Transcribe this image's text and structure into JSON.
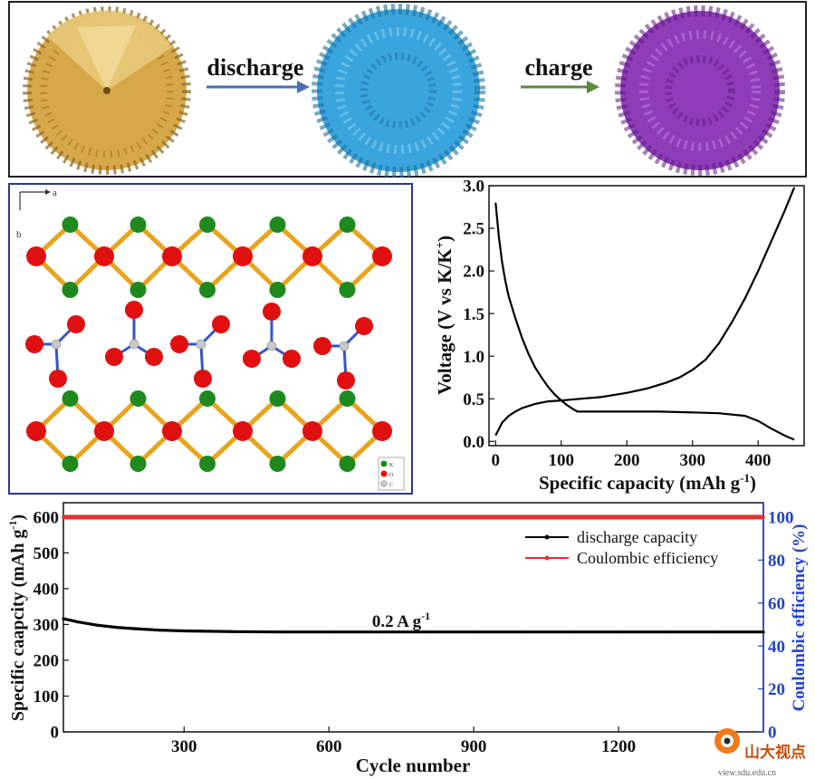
{
  "schematic": {
    "label_discharge": "discharge",
    "label_charge": "charge",
    "sphere_colors": {
      "pristine": "#d6a84a",
      "discharged": "#3aa5dc",
      "charged": "#8e3cb8"
    },
    "arrow_colors": {
      "discharge": "#4a6fb5",
      "charge": "#5a8a3a"
    }
  },
  "crystal": {
    "axis_a": "a",
    "axis_b": "b",
    "legend": [
      "K",
      "O",
      "C"
    ],
    "colors": {
      "k": "#1e8a1e",
      "o": "#e01010",
      "c": "#c8c8c8",
      "bond_yellow": "#e8a41c",
      "bond_blue": "#3355cc"
    }
  },
  "watermark": {
    "name": "山大视点",
    "url": "view.sdu.edu.cn"
  },
  "chart_data": [
    {
      "type": "line",
      "title": "",
      "xlabel": "Specific capacity (mAh g",
      "xlabel_sup": "-1",
      "xlabel_close": ")",
      "ylabel": "Voltage (V vs K/K",
      "ylabel_sup": "+",
      "ylabel_close": ")",
      "xlim": [
        -10,
        470
      ],
      "ylim": [
        -0.05,
        3.0
      ],
      "xticks": [
        0,
        100,
        200,
        300,
        400
      ],
      "xtick_labels": [
        "0",
        "100",
        "200",
        "300",
        "400"
      ],
      "yticks": [
        0.0,
        0.5,
        1.0,
        1.5,
        2.0,
        2.5,
        3.0
      ],
      "ytick_labels": [
        "0.0",
        "0.5",
        "1.0",
        "1.5",
        "2.0",
        "2.5",
        "3.0"
      ],
      "series": [
        {
          "name": "discharge",
          "x": [
            0,
            5,
            10,
            15,
            20,
            30,
            40,
            50,
            60,
            70,
            80,
            90,
            100,
            110,
            120,
            125,
            150,
            200,
            250,
            300,
            340,
            380,
            400,
            420,
            440,
            455
          ],
          "y": [
            2.8,
            2.4,
            2.1,
            1.88,
            1.7,
            1.45,
            1.22,
            1.03,
            0.87,
            0.75,
            0.64,
            0.55,
            0.48,
            0.42,
            0.37,
            0.35,
            0.35,
            0.35,
            0.35,
            0.34,
            0.33,
            0.3,
            0.24,
            0.15,
            0.07,
            0.02
          ]
        },
        {
          "name": "charge",
          "x": [
            0,
            10,
            20,
            30,
            40,
            60,
            80,
            100,
            130,
            160,
            200,
            230,
            260,
            280,
            300,
            320,
            340,
            360,
            380,
            400,
            420,
            440,
            455
          ],
          "y": [
            0.07,
            0.22,
            0.3,
            0.35,
            0.39,
            0.44,
            0.47,
            0.48,
            0.5,
            0.52,
            0.57,
            0.62,
            0.69,
            0.75,
            0.84,
            0.96,
            1.15,
            1.4,
            1.68,
            2.0,
            2.35,
            2.7,
            2.98
          ]
        }
      ]
    },
    {
      "type": "line",
      "title": "",
      "xlabel": "Cycle number",
      "ylabel": "Specific caapcity (mAh g",
      "ylabel_sup": "-1",
      "ylabel_close": ")",
      "y2label": "Coulombic efficiency (%)",
      "xlim": [
        50,
        1500
      ],
      "ylim": [
        0,
        640
      ],
      "y2lim": [
        0,
        106.7
      ],
      "xticks": [
        300,
        600,
        900,
        1200
      ],
      "xtick_labels": [
        "300",
        "600",
        "900",
        "1200"
      ],
      "yticks": [
        0,
        100,
        200,
        300,
        400,
        500,
        600
      ],
      "ytick_labels": [
        "0",
        "100",
        "200",
        "300",
        "400",
        "500",
        "600"
      ],
      "y2ticks": [
        0,
        20,
        40,
        60,
        80,
        100
      ],
      "y2tick_labels": [
        "0",
        "20",
        "40",
        "60",
        "80",
        "100"
      ],
      "annotation": "0.2 A g",
      "annotation_sup": "-1",
      "legend": [
        "discharge capacity",
        "Coulombic efficiency"
      ],
      "colors": {
        "capacity": "#000000",
        "efficiency": "#e83030",
        "right_axis": "#2244cc"
      },
      "series": [
        {
          "name": "discharge capacity",
          "axis": "left",
          "x": [
            50,
            80,
            120,
            160,
            200,
            250,
            300,
            400,
            500,
            600,
            700,
            800,
            900,
            1000,
            1100,
            1200,
            1300,
            1400,
            1500
          ],
          "y": [
            316,
            307,
            298,
            292,
            288,
            284,
            282,
            280,
            279,
            279,
            279,
            279,
            279,
            279,
            279,
            279,
            279,
            279,
            279
          ]
        },
        {
          "name": "Coulombic efficiency",
          "axis": "right",
          "x": [
            50,
            200,
            400,
            600,
            800,
            1000,
            1200,
            1400,
            1500
          ],
          "y": [
            100,
            100,
            100,
            100,
            100,
            100,
            100,
            100,
            100
          ]
        }
      ]
    }
  ]
}
